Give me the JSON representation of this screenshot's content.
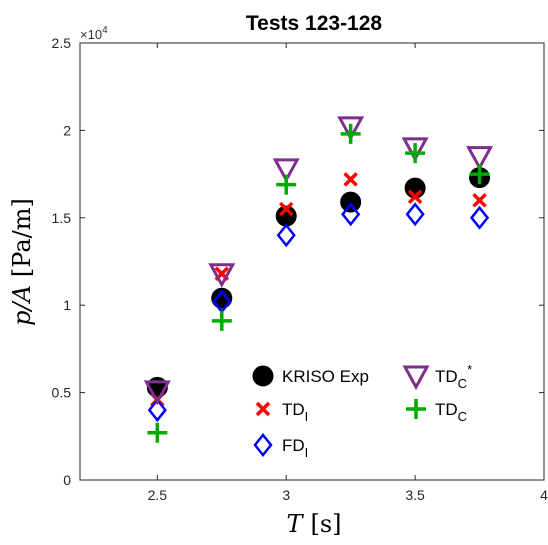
{
  "chart_data": {
    "type": "scatter",
    "title": "Tests 123-128",
    "xlabel": {
      "var": "T",
      "unit": "[s]"
    },
    "ylabel": {
      "var": "p/A",
      "unit": "[Pa/m]"
    },
    "xlim": [
      2.2,
      4
    ],
    "ylim": [
      0,
      25000
    ],
    "y_multiplier_label": {
      "base": "×10",
      "exp": "4"
    },
    "xticks": [
      {
        "value": 2.5,
        "label": "2.5"
      },
      {
        "value": 3,
        "label": "3"
      },
      {
        "value": 3.5,
        "label": "3.5"
      },
      {
        "value": 4,
        "label": "4"
      }
    ],
    "yticks": [
      {
        "value": 0,
        "label": "0"
      },
      {
        "value": 5000,
        "label": "0.5"
      },
      {
        "value": 10000,
        "label": "1"
      },
      {
        "value": 15000,
        "label": "1.5"
      },
      {
        "value": 20000,
        "label": "2"
      },
      {
        "value": 25000,
        "label": "2.5"
      }
    ],
    "grid": false,
    "legend_position": "bottom-right",
    "series": [
      {
        "name": {
          "main": "KRISO Exp",
          "sub": "",
          "sup": ""
        },
        "marker": "circle",
        "color": "#000000",
        "x": [
          2.5,
          2.75,
          3.0,
          3.25,
          3.5,
          3.75
        ],
        "y": [
          5300,
          10400,
          15100,
          15900,
          16700,
          17300
        ]
      },
      {
        "name": {
          "main": "TD",
          "sub": "I",
          "sup": ""
        },
        "marker": "x",
        "color": "#ff0000",
        "x": [
          2.5,
          2.75,
          3.0,
          3.25,
          3.5,
          3.75
        ],
        "y": [
          4600,
          11800,
          15500,
          17200,
          16200,
          16000
        ]
      },
      {
        "name": {
          "main": "FD",
          "sub": "I",
          "sup": ""
        },
        "marker": "diamond",
        "color": "#0000ff",
        "x": [
          2.5,
          2.75,
          3.0,
          3.25,
          3.5,
          3.75
        ],
        "y": [
          4000,
          10200,
          14000,
          15200,
          15200,
          15000
        ]
      },
      {
        "name": {
          "main": "TD",
          "sub": "C",
          "sup": "*"
        },
        "marker": "triangle-down",
        "color": "#7e2f8e",
        "x": [
          2.5,
          2.75,
          3.0,
          3.25,
          3.5,
          3.75
        ],
        "y": [
          5100,
          11800,
          17800,
          20200,
          19000,
          18500
        ]
      },
      {
        "name": {
          "main": "TD",
          "sub": "C",
          "sup": ""
        },
        "marker": "plus",
        "color": "#00aa00",
        "x": [
          2.5,
          2.75,
          3.0,
          3.25,
          3.5,
          3.75
        ],
        "y": [
          2700,
          9100,
          16900,
          19800,
          18700,
          17500
        ]
      }
    ]
  }
}
